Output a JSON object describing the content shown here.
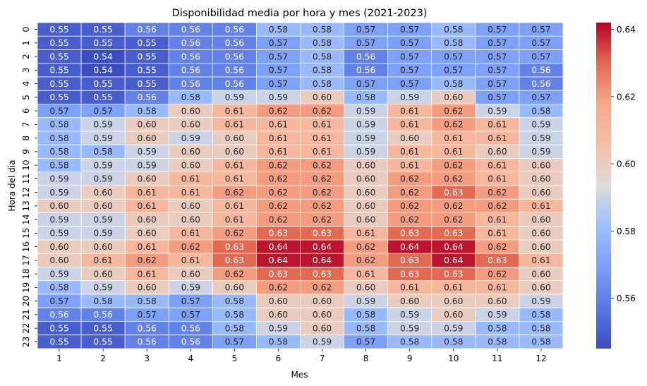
{
  "chart_data": {
    "type": "heatmap",
    "title": "Disponibilidad media por hora y mes (2021-2023)",
    "xlabel": "Mes",
    "ylabel": "Hora del dia",
    "x": [
      "1",
      "2",
      "3",
      "4",
      "5",
      "6",
      "7",
      "8",
      "9",
      "10",
      "11",
      "12"
    ],
    "y": [
      "0",
      "1",
      "2",
      "3",
      "4",
      "5",
      "6",
      "7",
      "8",
      "9",
      "10",
      "11",
      "12",
      "13",
      "14",
      "15",
      "16",
      "17",
      "18",
      "19",
      "20",
      "21",
      "22",
      "23"
    ],
    "values": [
      [
        0.55,
        0.55,
        0.56,
        0.56,
        0.56,
        0.58,
        0.58,
        0.57,
        0.57,
        0.58,
        0.57,
        0.57
      ],
      [
        0.55,
        0.55,
        0.55,
        0.56,
        0.56,
        0.57,
        0.58,
        0.57,
        0.57,
        0.58,
        0.57,
        0.57
      ],
      [
        0.55,
        0.54,
        0.55,
        0.56,
        0.56,
        0.57,
        0.58,
        0.56,
        0.57,
        0.57,
        0.57,
        0.57
      ],
      [
        0.55,
        0.54,
        0.55,
        0.56,
        0.56,
        0.57,
        0.58,
        0.56,
        0.57,
        0.57,
        0.57,
        0.56
      ],
      [
        0.55,
        0.55,
        0.55,
        0.56,
        0.56,
        0.57,
        0.58,
        0.57,
        0.57,
        0.58,
        0.57,
        0.56
      ],
      [
        0.55,
        0.55,
        0.56,
        0.58,
        0.59,
        0.59,
        0.6,
        0.58,
        0.59,
        0.6,
        0.57,
        0.57
      ],
      [
        0.57,
        0.57,
        0.58,
        0.6,
        0.61,
        0.62,
        0.62,
        0.59,
        0.61,
        0.62,
        0.59,
        0.58
      ],
      [
        0.58,
        0.59,
        0.6,
        0.6,
        0.61,
        0.61,
        0.61,
        0.59,
        0.61,
        0.62,
        0.61,
        0.59
      ],
      [
        0.58,
        0.59,
        0.6,
        0.59,
        0.6,
        0.61,
        0.61,
        0.59,
        0.6,
        0.61,
        0.61,
        0.59
      ],
      [
        0.58,
        0.58,
        0.59,
        0.6,
        0.6,
        0.61,
        0.61,
        0.59,
        0.61,
        0.61,
        0.6,
        0.59
      ],
      [
        0.58,
        0.59,
        0.59,
        0.6,
        0.61,
        0.62,
        0.62,
        0.6,
        0.61,
        0.62,
        0.61,
        0.6
      ],
      [
        0.59,
        0.59,
        0.6,
        0.61,
        0.61,
        0.62,
        0.62,
        0.6,
        0.62,
        0.62,
        0.61,
        0.6
      ],
      [
        0.59,
        0.6,
        0.61,
        0.61,
        0.62,
        0.62,
        0.62,
        0.6,
        0.62,
        0.63,
        0.62,
        0.6
      ],
      [
        0.6,
        0.6,
        0.61,
        0.6,
        0.61,
        0.62,
        0.62,
        0.6,
        0.62,
        0.62,
        0.62,
        0.61
      ],
      [
        0.59,
        0.59,
        0.6,
        0.6,
        0.61,
        0.62,
        0.62,
        0.6,
        0.62,
        0.62,
        0.61,
        0.6
      ],
      [
        0.59,
        0.59,
        0.6,
        0.61,
        0.62,
        0.63,
        0.63,
        0.61,
        0.63,
        0.63,
        0.61,
        0.6
      ],
      [
        0.6,
        0.6,
        0.61,
        0.62,
        0.63,
        0.64,
        0.64,
        0.62,
        0.64,
        0.64,
        0.62,
        0.6
      ],
      [
        0.6,
        0.61,
        0.62,
        0.61,
        0.63,
        0.64,
        0.64,
        0.62,
        0.63,
        0.64,
        0.63,
        0.61
      ],
      [
        0.59,
        0.6,
        0.61,
        0.6,
        0.62,
        0.63,
        0.63,
        0.61,
        0.63,
        0.63,
        0.62,
        0.6
      ],
      [
        0.58,
        0.59,
        0.6,
        0.59,
        0.6,
        0.62,
        0.62,
        0.6,
        0.61,
        0.61,
        0.61,
        0.6
      ],
      [
        0.57,
        0.58,
        0.58,
        0.57,
        0.58,
        0.6,
        0.6,
        0.59,
        0.6,
        0.6,
        0.6,
        0.59
      ],
      [
        0.56,
        0.56,
        0.57,
        0.57,
        0.58,
        0.6,
        0.6,
        0.58,
        0.59,
        0.6,
        0.59,
        0.58
      ],
      [
        0.55,
        0.55,
        0.56,
        0.56,
        0.58,
        0.59,
        0.6,
        0.58,
        0.59,
        0.59,
        0.58,
        0.58
      ],
      [
        0.55,
        0.55,
        0.56,
        0.56,
        0.57,
        0.58,
        0.59,
        0.57,
        0.58,
        0.58,
        0.58,
        0.58
      ]
    ],
    "colormap": "coolwarm",
    "vmin": 0.545,
    "vmax": 0.642,
    "colorbar_ticks": [
      "0.56",
      "0.58",
      "0.60",
      "0.62",
      "0.64"
    ],
    "colorbar_tick_values": [
      0.56,
      0.58,
      0.6,
      0.62,
      0.64
    ],
    "grid": false,
    "legend": "colorbar-right"
  }
}
